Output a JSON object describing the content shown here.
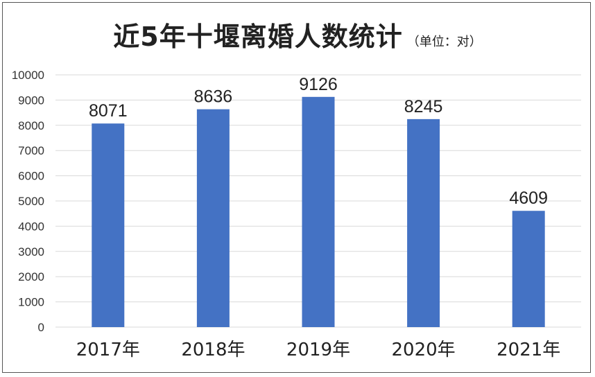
{
  "chart_data": {
    "type": "bar",
    "title": "近5年十堰离婚人数统计",
    "subtitle": "（单位：对）",
    "categories": [
      "2017年",
      "2018年",
      "2019年",
      "2020年",
      "2021年"
    ],
    "values": [
      8071,
      8636,
      9126,
      8245,
      4609
    ],
    "data_labels": [
      "8071",
      "8636",
      "9126",
      "8245",
      "4609"
    ],
    "ylim": [
      0,
      10000
    ],
    "yticks": [
      "0",
      "1000",
      "2000",
      "3000",
      "4000",
      "5000",
      "6000",
      "7000",
      "8000",
      "9000",
      "10000"
    ],
    "xlabel": "",
    "ylabel": "",
    "grid": true,
    "legend": "none",
    "bar_color": "#4472C4",
    "grid_color": "#D9D9D9"
  }
}
